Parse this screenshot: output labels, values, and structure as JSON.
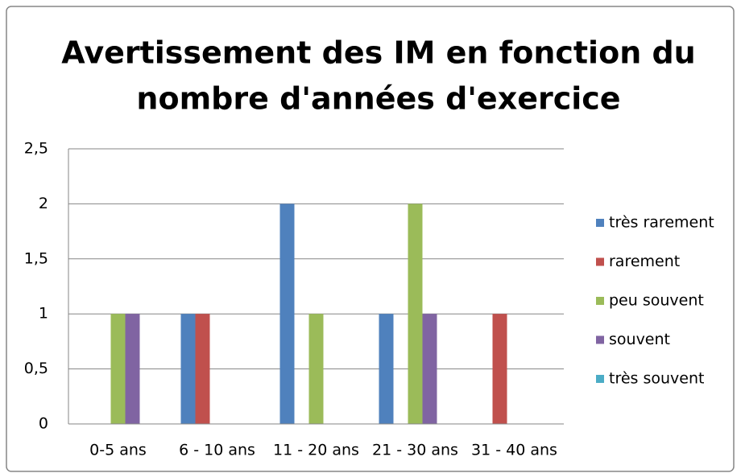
{
  "chart_data": {
    "type": "bar",
    "title": [
      "Avertissement des IM en fonction du",
      "nombre d'années d'exercice"
    ],
    "categories": [
      "0-5 ans",
      "6 - 10 ans",
      "11 - 20 ans",
      "21 - 30 ans",
      "31 - 40 ans"
    ],
    "series": [
      {
        "name": "très rarement",
        "color": "#4f81bd",
        "values": [
          0,
          1,
          2,
          1,
          0
        ]
      },
      {
        "name": "rarement",
        "color": "#c0504d",
        "values": [
          0,
          1,
          0,
          0,
          1
        ]
      },
      {
        "name": "peu souvent",
        "color": "#9bbb59",
        "values": [
          1,
          0,
          1,
          2,
          0
        ]
      },
      {
        "name": "souvent",
        "color": "#8064a2",
        "values": [
          1,
          0,
          0,
          1,
          0
        ]
      },
      {
        "name": "très souvent",
        "color": "#4bacc6",
        "values": [
          0,
          0,
          0,
          0,
          0
        ]
      }
    ],
    "ylim": [
      0,
      2.5
    ],
    "yticks": [
      0,
      {
        "value": 0.5,
        "label": "0,5"
      },
      1,
      {
        "value": 1.5,
        "label": "1,5"
      },
      2,
      {
        "value": 2.5,
        "label": "2,5"
      }
    ],
    "grid": true,
    "legend": "right"
  }
}
